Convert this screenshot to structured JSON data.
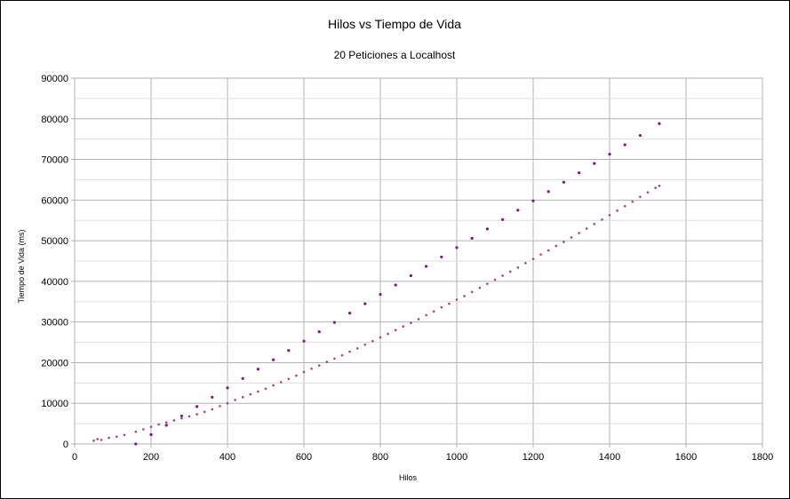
{
  "chart_data": {
    "type": "scatter",
    "title": "Hilos vs Tiempo de Vida",
    "subtitle": "20 Peticiones a Localhost",
    "xlabel": "Hilos",
    "ylabel": "Tiempo de Vida (ms)",
    "xlim": [
      0,
      1800
    ],
    "ylim": [
      0,
      90000
    ],
    "x_ticks": [
      "0",
      "200",
      "400",
      "600",
      "800",
      "1000",
      "1200",
      "1400",
      "1600",
      "1800"
    ],
    "y_ticks": [
      "0",
      "10000",
      "20000",
      "30000",
      "40000",
      "50000",
      "60000",
      "70000",
      "80000",
      "90000"
    ],
    "grid": true,
    "legend": "none",
    "series": [
      {
        "color": "#a6447f",
        "points": [
          [
            50,
            800
          ],
          [
            60,
            1200
          ],
          [
            70,
            1000
          ],
          [
            90,
            1500
          ],
          [
            110,
            1800
          ],
          [
            130,
            2200
          ],
          [
            160,
            3000
          ],
          [
            180,
            3600
          ],
          [
            200,
            4200
          ],
          [
            220,
            4800
          ],
          [
            240,
            5300
          ],
          [
            260,
            5800
          ],
          [
            280,
            6300
          ],
          [
            300,
            6800
          ],
          [
            320,
            7300
          ],
          [
            340,
            7900
          ],
          [
            360,
            8500
          ],
          [
            380,
            9300
          ],
          [
            400,
            10000
          ],
          [
            420,
            10800
          ],
          [
            440,
            11500
          ],
          [
            460,
            12200
          ],
          [
            480,
            12900
          ],
          [
            500,
            13600
          ],
          [
            520,
            14400
          ],
          [
            540,
            15200
          ],
          [
            560,
            16000
          ],
          [
            580,
            16800
          ],
          [
            600,
            17700
          ],
          [
            620,
            18500
          ],
          [
            640,
            19300
          ],
          [
            660,
            20200
          ],
          [
            680,
            21000
          ],
          [
            700,
            21800
          ],
          [
            720,
            22700
          ],
          [
            740,
            23500
          ],
          [
            760,
            24400
          ],
          [
            780,
            25300
          ],
          [
            800,
            26200
          ],
          [
            820,
            27100
          ],
          [
            840,
            28000
          ],
          [
            860,
            28900
          ],
          [
            880,
            29800
          ],
          [
            900,
            30700
          ],
          [
            920,
            31700
          ],
          [
            940,
            32600
          ],
          [
            960,
            33600
          ],
          [
            980,
            34500
          ],
          [
            1000,
            35500
          ],
          [
            1020,
            36400
          ],
          [
            1040,
            37400
          ],
          [
            1060,
            38400
          ],
          [
            1080,
            39400
          ],
          [
            1100,
            40400
          ],
          [
            1120,
            41400
          ],
          [
            1140,
            42400
          ],
          [
            1160,
            43400
          ],
          [
            1180,
            44500
          ],
          [
            1200,
            45500
          ],
          [
            1220,
            46600
          ],
          [
            1240,
            47600
          ],
          [
            1260,
            48700
          ],
          [
            1280,
            49700
          ],
          [
            1300,
            50800
          ],
          [
            1320,
            51900
          ],
          [
            1340,
            53000
          ],
          [
            1360,
            54100
          ],
          [
            1380,
            55200
          ],
          [
            1400,
            56300
          ],
          [
            1420,
            57400
          ],
          [
            1440,
            58500
          ],
          [
            1460,
            59600
          ],
          [
            1480,
            60800
          ],
          [
            1500,
            61900
          ],
          [
            1520,
            63000
          ],
          [
            1530,
            63500
          ]
        ]
      },
      {
        "color": "#7a1a7a",
        "points": [
          [
            160,
            0
          ],
          [
            200,
            2300
          ],
          [
            240,
            4600
          ],
          [
            280,
            6900
          ],
          [
            320,
            9200
          ],
          [
            360,
            11500
          ],
          [
            400,
            13800
          ],
          [
            440,
            16100
          ],
          [
            480,
            18400
          ],
          [
            520,
            20700
          ],
          [
            560,
            23000
          ],
          [
            600,
            25300
          ],
          [
            640,
            27600
          ],
          [
            680,
            29900
          ],
          [
            720,
            32200
          ],
          [
            760,
            34500
          ],
          [
            800,
            36800
          ],
          [
            840,
            39100
          ],
          [
            880,
            41400
          ],
          [
            920,
            43700
          ],
          [
            960,
            46000
          ],
          [
            1000,
            48300
          ],
          [
            1040,
            50600
          ],
          [
            1080,
            52900
          ],
          [
            1120,
            55200
          ],
          [
            1160,
            57500
          ],
          [
            1200,
            59800
          ],
          [
            1240,
            62100
          ],
          [
            1280,
            64400
          ],
          [
            1320,
            66700
          ],
          [
            1360,
            69000
          ],
          [
            1400,
            71300
          ],
          [
            1440,
            73600
          ],
          [
            1480,
            75900
          ],
          [
            1530,
            78800
          ]
        ]
      }
    ]
  }
}
